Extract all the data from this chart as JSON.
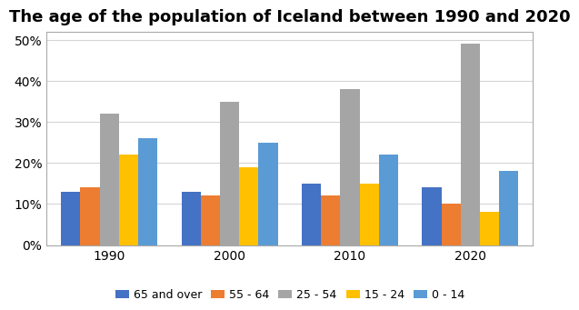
{
  "title": "The age of the population of Iceland between 1990 and 2020",
  "years": [
    1990,
    2000,
    2010,
    2020
  ],
  "categories": [
    "65 and over",
    "55 - 64",
    "25 - 54",
    "15 - 24",
    "0 - 14"
  ],
  "colors": [
    "#4472c4",
    "#ed7d31",
    "#a5a5a5",
    "#ffc000",
    "#5b9bd5"
  ],
  "data": {
    "65 and over": [
      13,
      13,
      15,
      14
    ],
    "55 - 64": [
      14,
      12,
      12,
      10
    ],
    "25 - 54": [
      32,
      35,
      38,
      49
    ],
    "15 - 24": [
      22,
      19,
      15,
      8
    ],
    "0 - 14": [
      26,
      25,
      22,
      18
    ]
  },
  "ylim": [
    0,
    52
  ],
  "yticks": [
    0,
    10,
    20,
    30,
    40,
    50
  ],
  "ytick_labels": [
    "0%",
    "10%",
    "20%",
    "30%",
    "40%",
    "50%"
  ],
  "title_fontsize": 13,
  "legend_fontsize": 9,
  "tick_fontsize": 10,
  "background_color": "#ffffff",
  "bar_width": 0.16,
  "border_color": "#aaaaaa"
}
